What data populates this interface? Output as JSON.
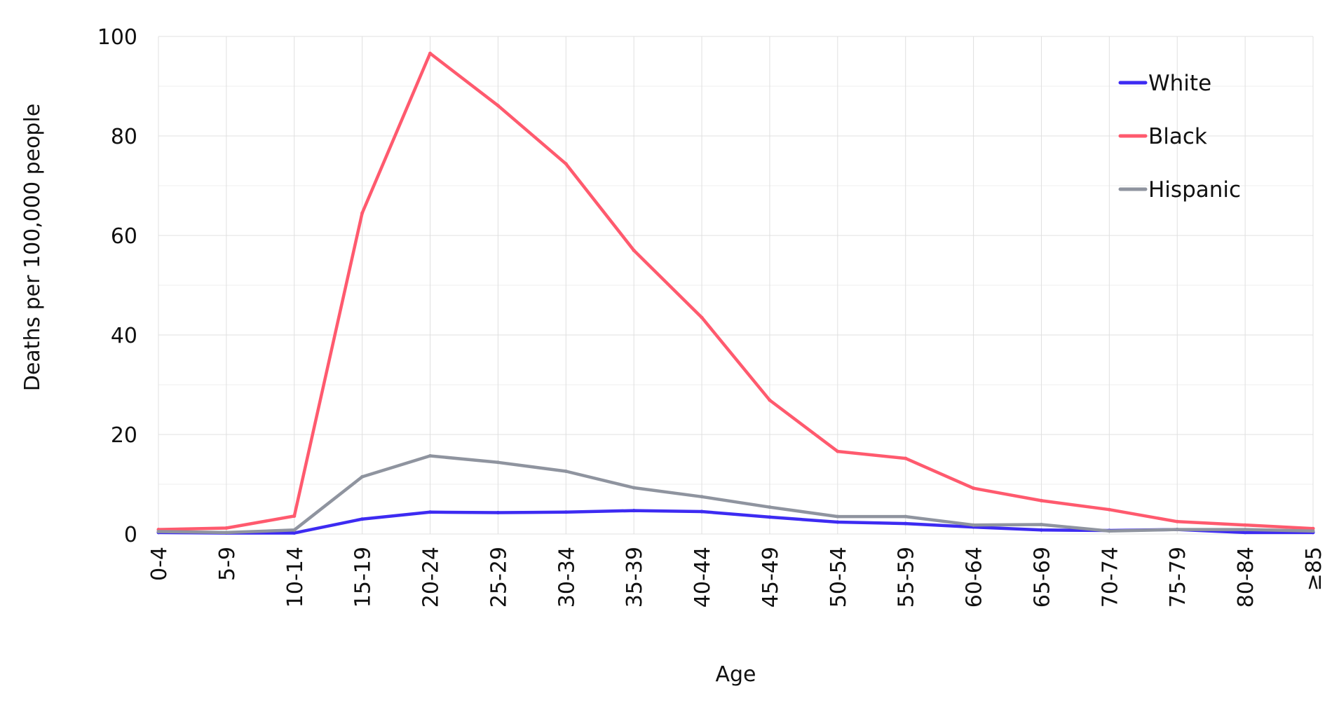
{
  "chart_data": {
    "type": "line",
    "title": "",
    "xlabel": "Age",
    "ylabel": "Deaths per 100,000 people",
    "categories": [
      "0-4",
      "5-9",
      "10-14",
      "15-19",
      "20-24",
      "25-29",
      "30-34",
      "35-39",
      "40-44",
      "45-49",
      "50-54",
      "55-59",
      "60-64",
      "65-69",
      "70-74",
      "75-79",
      "80-84",
      "≥85"
    ],
    "ylim": [
      0,
      100
    ],
    "yticks": [
      "0",
      "20",
      "40",
      "60",
      "80",
      "100"
    ],
    "grid": true,
    "legend_position": "top-right",
    "series": [
      {
        "name": "White",
        "color": "#3d2bf2",
        "values": [
          0.3,
          0.2,
          0.2,
          3.0,
          4.4,
          4.3,
          4.4,
          4.7,
          4.5,
          3.4,
          2.4,
          2.1,
          1.4,
          0.8,
          0.7,
          0.9,
          0.3,
          0.3
        ]
      },
      {
        "name": "Black",
        "color": "#ff5a6e",
        "values": [
          0.9,
          1.2,
          3.6,
          64.5,
          96.6,
          86.1,
          74.4,
          57.0,
          43.5,
          26.9,
          16.6,
          15.2,
          9.2,
          6.7,
          4.9,
          2.5,
          1.8,
          1.1
        ]
      },
      {
        "name": "Hispanic",
        "color": "#8f949f",
        "values": [
          0.5,
          0.3,
          0.8,
          11.5,
          15.7,
          14.4,
          12.6,
          9.3,
          7.5,
          5.4,
          3.5,
          3.5,
          1.8,
          1.9,
          0.6,
          0.9,
          0.9,
          0.6
        ]
      }
    ]
  }
}
